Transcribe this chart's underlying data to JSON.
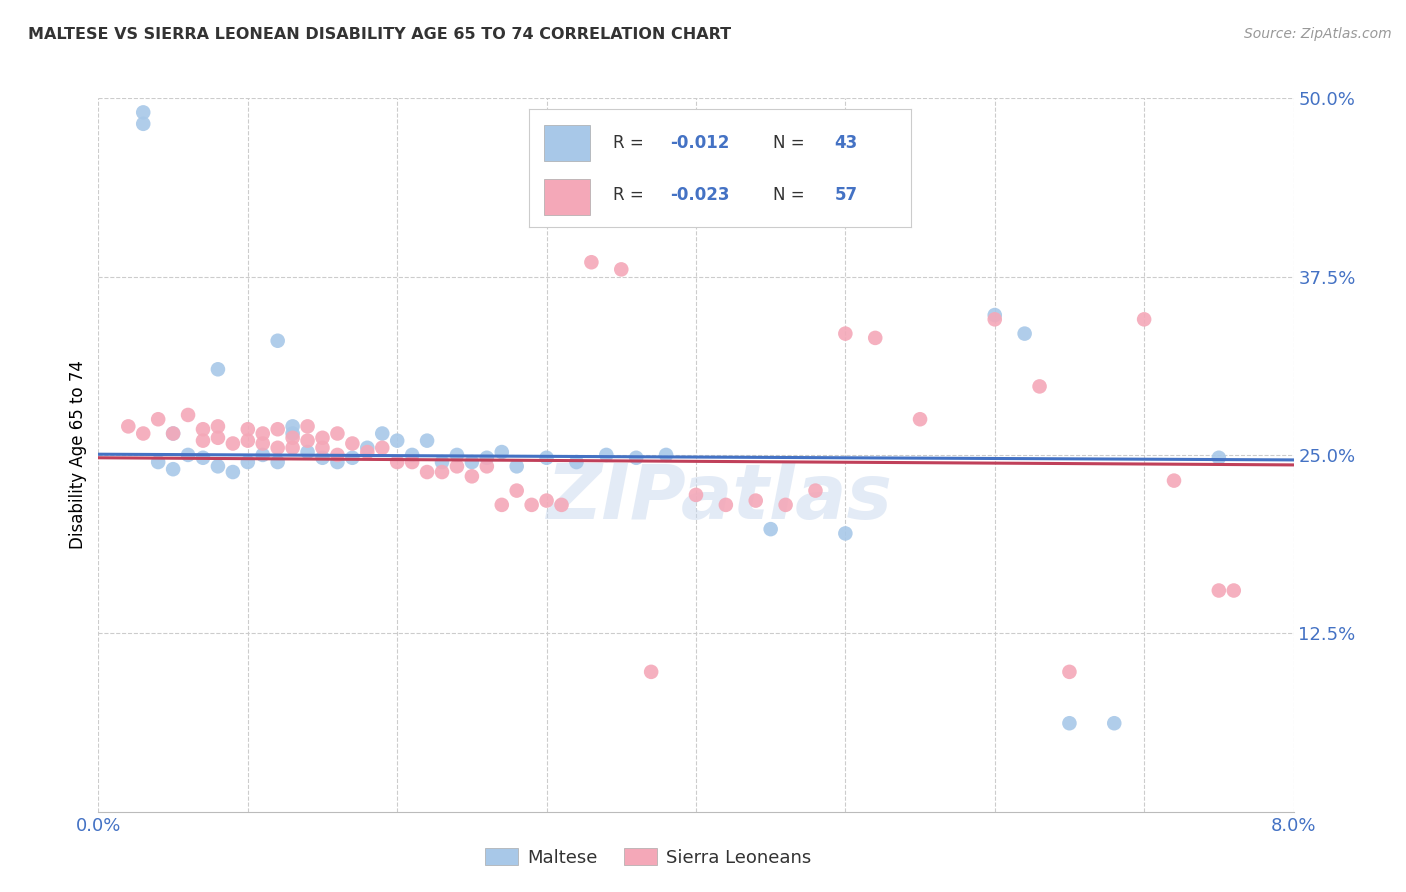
{
  "title": "MALTESE VS SIERRA LEONEAN DISABILITY AGE 65 TO 74 CORRELATION CHART",
  "source": "Source: ZipAtlas.com",
  "ylabel": "Disability Age 65 to 74",
  "xlim": [
    0.0,
    0.08
  ],
  "ylim": [
    0.0,
    0.5
  ],
  "yticks": [
    0.125,
    0.25,
    0.375,
    0.5
  ],
  "ytick_labels": [
    "12.5%",
    "25.0%",
    "37.5%",
    "50.0%"
  ],
  "bottom_legend": [
    "Maltese",
    "Sierra Leoneans"
  ],
  "blue_color": "#a8c8e8",
  "pink_color": "#f4a8b8",
  "trendline_blue": "#4472c4",
  "trendline_pink": "#c0405a",
  "watermark": "ZIPatlas",
  "blue_trendline_y": [
    0.2505,
    0.2465
  ],
  "pink_trendline_y": [
    0.248,
    0.243
  ],
  "blue_points": [
    [
      0.003,
      0.49
    ],
    [
      0.003,
      0.482
    ],
    [
      0.012,
      0.33
    ],
    [
      0.005,
      0.265
    ],
    [
      0.008,
      0.31
    ],
    [
      0.013,
      0.27
    ],
    [
      0.013,
      0.265
    ],
    [
      0.018,
      0.255
    ],
    [
      0.019,
      0.265
    ],
    [
      0.02,
      0.26
    ],
    [
      0.021,
      0.25
    ],
    [
      0.022,
      0.26
    ],
    [
      0.025,
      0.245
    ],
    [
      0.004,
      0.245
    ],
    [
      0.005,
      0.24
    ],
    [
      0.006,
      0.25
    ],
    [
      0.007,
      0.248
    ],
    [
      0.008,
      0.242
    ],
    [
      0.009,
      0.238
    ],
    [
      0.01,
      0.245
    ],
    [
      0.011,
      0.25
    ],
    [
      0.012,
      0.245
    ],
    [
      0.014,
      0.252
    ],
    [
      0.015,
      0.248
    ],
    [
      0.016,
      0.245
    ],
    [
      0.017,
      0.248
    ],
    [
      0.023,
      0.245
    ],
    [
      0.024,
      0.25
    ],
    [
      0.026,
      0.248
    ],
    [
      0.027,
      0.252
    ],
    [
      0.028,
      0.242
    ],
    [
      0.03,
      0.248
    ],
    [
      0.032,
      0.245
    ],
    [
      0.034,
      0.25
    ],
    [
      0.036,
      0.248
    ],
    [
      0.038,
      0.25
    ],
    [
      0.045,
      0.198
    ],
    [
      0.05,
      0.195
    ],
    [
      0.06,
      0.348
    ],
    [
      0.062,
      0.335
    ],
    [
      0.065,
      0.062
    ],
    [
      0.068,
      0.062
    ],
    [
      0.075,
      0.248
    ]
  ],
  "pink_points": [
    [
      0.002,
      0.27
    ],
    [
      0.003,
      0.265
    ],
    [
      0.004,
      0.275
    ],
    [
      0.005,
      0.265
    ],
    [
      0.006,
      0.278
    ],
    [
      0.007,
      0.268
    ],
    [
      0.007,
      0.26
    ],
    [
      0.008,
      0.27
    ],
    [
      0.008,
      0.262
    ],
    [
      0.009,
      0.258
    ],
    [
      0.01,
      0.268
    ],
    [
      0.01,
      0.26
    ],
    [
      0.011,
      0.265
    ],
    [
      0.011,
      0.258
    ],
    [
      0.012,
      0.268
    ],
    [
      0.012,
      0.255
    ],
    [
      0.013,
      0.262
    ],
    [
      0.013,
      0.255
    ],
    [
      0.014,
      0.27
    ],
    [
      0.014,
      0.26
    ],
    [
      0.015,
      0.262
    ],
    [
      0.015,
      0.255
    ],
    [
      0.016,
      0.265
    ],
    [
      0.016,
      0.25
    ],
    [
      0.017,
      0.258
    ],
    [
      0.018,
      0.252
    ],
    [
      0.019,
      0.255
    ],
    [
      0.02,
      0.245
    ],
    [
      0.021,
      0.245
    ],
    [
      0.022,
      0.238
    ],
    [
      0.023,
      0.238
    ],
    [
      0.024,
      0.242
    ],
    [
      0.025,
      0.235
    ],
    [
      0.026,
      0.242
    ],
    [
      0.027,
      0.215
    ],
    [
      0.028,
      0.225
    ],
    [
      0.029,
      0.215
    ],
    [
      0.03,
      0.218
    ],
    [
      0.031,
      0.215
    ],
    [
      0.033,
      0.385
    ],
    [
      0.037,
      0.098
    ],
    [
      0.04,
      0.222
    ],
    [
      0.042,
      0.215
    ],
    [
      0.044,
      0.218
    ],
    [
      0.046,
      0.215
    ],
    [
      0.048,
      0.225
    ],
    [
      0.05,
      0.335
    ],
    [
      0.052,
      0.332
    ],
    [
      0.035,
      0.38
    ],
    [
      0.055,
      0.275
    ],
    [
      0.06,
      0.345
    ],
    [
      0.063,
      0.298
    ],
    [
      0.065,
      0.098
    ],
    [
      0.07,
      0.345
    ],
    [
      0.072,
      0.232
    ],
    [
      0.075,
      0.155
    ],
    [
      0.076,
      0.155
    ]
  ]
}
